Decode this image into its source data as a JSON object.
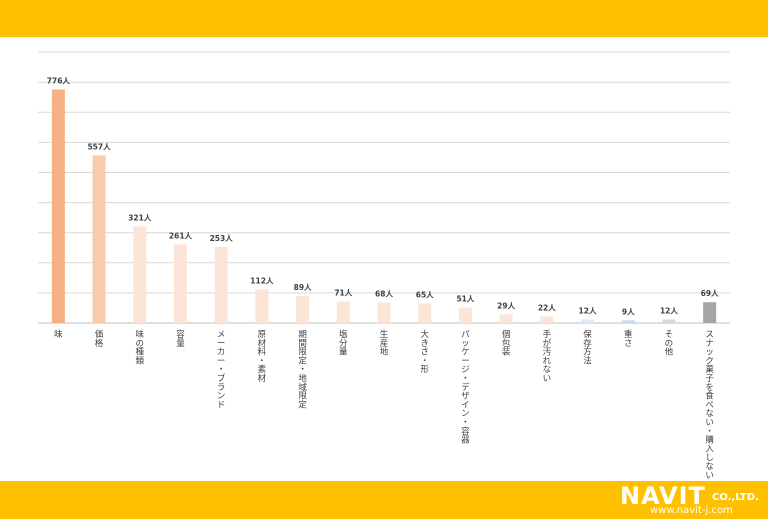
{
  "colors": {
    "band": "#FFC000",
    "grid": "#d9d9d9",
    "text": "#404040"
  },
  "brand": {
    "name": "NAVIT",
    "suffix": "CO.,LTD.",
    "url": "www.navit-j.com"
  },
  "chart_data": {
    "type": "bar",
    "title": "",
    "xlabel": "",
    "ylabel": "",
    "ylim": [
      0,
      900
    ],
    "grid": true,
    "unit": "人",
    "categories": [
      "味",
      "価格",
      "味の種類",
      "容量",
      "メーカー・ブランド",
      "原材料・素材",
      "期間限定・地域限定",
      "塩分量",
      "生産地",
      "大きさ・形",
      "パッケージ・デザイン・容器",
      "個包装",
      "手が汚れない",
      "保存方法",
      "重さ",
      "その他",
      "スナック菓子を食べない・購入しない"
    ],
    "values": [
      776,
      557,
      321,
      261,
      253,
      112,
      89,
      71,
      68,
      65,
      51,
      29,
      22,
      12,
      9,
      12,
      69
    ],
    "labels": [
      "776人",
      "557人",
      "321人",
      "261人",
      "253人",
      "112人",
      "89人",
      "71人",
      "68人",
      "65人",
      "51人",
      "29人",
      "22人",
      "12人",
      "9人",
      "12人",
      "69人"
    ],
    "bar_colors": [
      "#F4B183",
      "#F8CBAD",
      "#FBE5D6",
      "#FBE5D6",
      "#FBE5D6",
      "#FBE5D6",
      "#FBE5D6",
      "#FBE5D6",
      "#FBE5D6",
      "#FBE5D6",
      "#FBE5D6",
      "#FBE5D6",
      "#FBE5D6",
      "#DEEBF7",
      "#C5D9F1",
      "#D9D9D9",
      "#A6A6A6"
    ]
  }
}
